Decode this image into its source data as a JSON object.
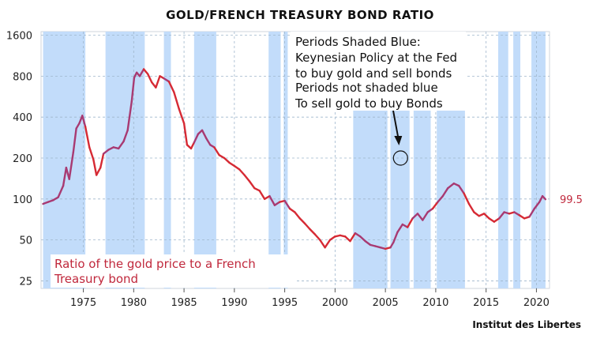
{
  "chart_data": {
    "type": "line",
    "title": "GOLD/FRENCH TREASURY BOND RATIO",
    "y_scale": "log",
    "ylim": [
      22,
      1700
    ],
    "xlim": [
      1970.8,
      2021.3
    ],
    "y_ticks": [
      25,
      50,
      100,
      200,
      400,
      800,
      1600
    ],
    "x_ticks": [
      1975,
      1980,
      1985,
      1990,
      1995,
      2000,
      2005,
      2010,
      2015,
      2020
    ],
    "grid": true,
    "series": [
      {
        "name": "Ratio of the gold price to a French Treasury bond",
        "color": "#d62a34",
        "highlight_color": "#a83a72",
        "points": [
          [
            1971.0,
            92
          ],
          [
            1971.5,
            95
          ],
          [
            1972.0,
            98
          ],
          [
            1972.5,
            103
          ],
          [
            1973.0,
            125
          ],
          [
            1973.3,
            170
          ],
          [
            1973.6,
            140
          ],
          [
            1974.0,
            220
          ],
          [
            1974.3,
            330
          ],
          [
            1974.6,
            360
          ],
          [
            1974.9,
            410
          ],
          [
            1975.2,
            340
          ],
          [
            1975.6,
            240
          ],
          [
            1976.0,
            195
          ],
          [
            1976.3,
            150
          ],
          [
            1976.7,
            170
          ],
          [
            1977.0,
            215
          ],
          [
            1977.5,
            230
          ],
          [
            1978.0,
            240
          ],
          [
            1978.5,
            235
          ],
          [
            1979.0,
            265
          ],
          [
            1979.4,
            320
          ],
          [
            1979.8,
            520
          ],
          [
            1980.05,
            780
          ],
          [
            1980.3,
            850
          ],
          [
            1980.6,
            800
          ],
          [
            1981.0,
            900
          ],
          [
            1981.4,
            830
          ],
          [
            1981.8,
            720
          ],
          [
            1982.2,
            660
          ],
          [
            1982.6,
            800
          ],
          [
            1983.0,
            770
          ],
          [
            1983.5,
            730
          ],
          [
            1984.0,
            610
          ],
          [
            1984.5,
            460
          ],
          [
            1985.0,
            360
          ],
          [
            1985.3,
            250
          ],
          [
            1985.7,
            235
          ],
          [
            1986.0,
            260
          ],
          [
            1986.4,
            300
          ],
          [
            1986.8,
            320
          ],
          [
            1987.2,
            280
          ],
          [
            1987.6,
            250
          ],
          [
            1988.0,
            240
          ],
          [
            1988.5,
            210
          ],
          [
            1989.0,
            200
          ],
          [
            1989.5,
            185
          ],
          [
            1990.0,
            175
          ],
          [
            1990.5,
            165
          ],
          [
            1991.0,
            150
          ],
          [
            1991.5,
            135
          ],
          [
            1992.0,
            120
          ],
          [
            1992.5,
            115
          ],
          [
            1993.0,
            100
          ],
          [
            1993.5,
            105
          ],
          [
            1994.0,
            90
          ],
          [
            1994.5,
            95
          ],
          [
            1995.0,
            97
          ],
          [
            1995.5,
            85
          ],
          [
            1996.0,
            80
          ],
          [
            1996.5,
            72
          ],
          [
            1997.0,
            66
          ],
          [
            1997.5,
            60
          ],
          [
            1998.0,
            55
          ],
          [
            1998.5,
            50
          ],
          [
            1999.0,
            44
          ],
          [
            1999.5,
            50
          ],
          [
            2000.0,
            53
          ],
          [
            2000.5,
            54
          ],
          [
            2001.0,
            53
          ],
          [
            2001.5,
            49
          ],
          [
            2002.0,
            56
          ],
          [
            2002.5,
            53
          ],
          [
            2003.0,
            49
          ],
          [
            2003.5,
            46
          ],
          [
            2004.0,
            45
          ],
          [
            2004.5,
            44
          ],
          [
            2005.0,
            43
          ],
          [
            2005.5,
            44
          ],
          [
            2005.8,
            48
          ],
          [
            2006.2,
            57
          ],
          [
            2006.7,
            65
          ],
          [
            2007.2,
            62
          ],
          [
            2007.7,
            72
          ],
          [
            2008.2,
            78
          ],
          [
            2008.7,
            70
          ],
          [
            2009.2,
            80
          ],
          [
            2009.7,
            85
          ],
          [
            2010.2,
            95
          ],
          [
            2010.7,
            105
          ],
          [
            2011.2,
            120
          ],
          [
            2011.8,
            130
          ],
          [
            2012.3,
            125
          ],
          [
            2012.8,
            110
          ],
          [
            2013.3,
            92
          ],
          [
            2013.8,
            80
          ],
          [
            2014.3,
            75
          ],
          [
            2014.8,
            78
          ],
          [
            2015.3,
            72
          ],
          [
            2015.8,
            68
          ],
          [
            2016.3,
            72
          ],
          [
            2016.8,
            80
          ],
          [
            2017.3,
            78
          ],
          [
            2017.8,
            80
          ],
          [
            2018.3,
            76
          ],
          [
            2018.8,
            72
          ],
          [
            2019.3,
            74
          ],
          [
            2019.8,
            85
          ],
          [
            2020.3,
            95
          ],
          [
            2020.6,
            105
          ],
          [
            2020.9,
            99.5
          ]
        ]
      }
    ],
    "last_value_label": "99.5",
    "shaded_periods_color": "#c2dcfa",
    "shaded_periods": [
      [
        1971.0,
        1975.2
      ],
      [
        1977.2,
        1981.1
      ],
      [
        1983.0,
        1983.7
      ],
      [
        1986.0,
        1988.2
      ],
      [
        1993.4,
        1994.6
      ],
      [
        1994.9,
        1995.3
      ],
      [
        2001.8,
        2005.2
      ],
      [
        2005.5,
        2007.4
      ],
      [
        2007.8,
        2009.5
      ],
      [
        2010.1,
        2012.9
      ],
      [
        2016.2,
        2017.2
      ],
      [
        2017.7,
        2018.4
      ],
      [
        2019.5,
        2020.9
      ]
    ],
    "annotation": {
      "lines": [
        "Periods Shaded Blue:",
        "Keynesian Policy at the Fed",
        "to buy gold and sell bonds",
        "Periods not shaded blue",
        "To sell gold to buy Bonds"
      ],
      "circle_at": [
        2006.5,
        200
      ]
    },
    "series_label_lines": [
      "Ratio of the gold price to a French",
      "Treasury bond"
    ],
    "source": "Institut des Libertes"
  }
}
